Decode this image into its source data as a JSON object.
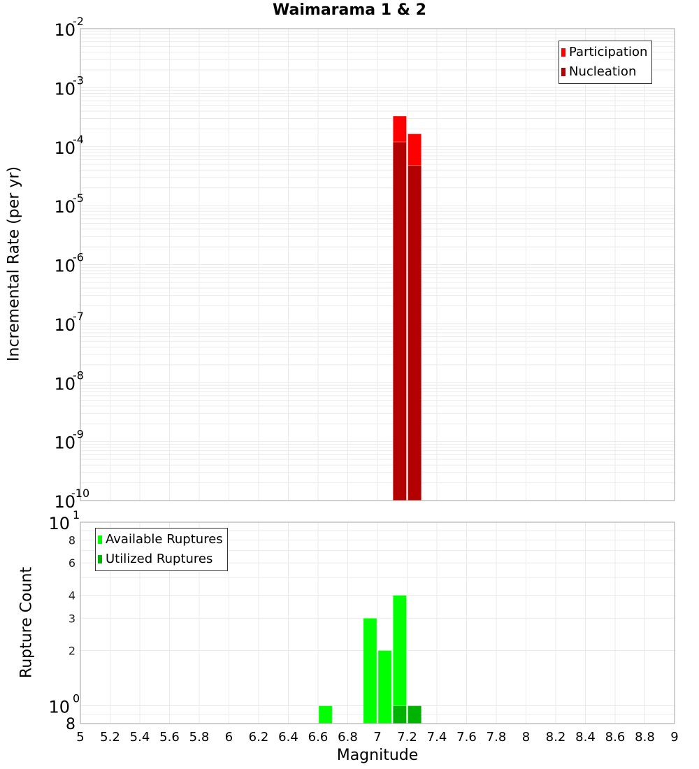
{
  "title": "Waimarama 1 & 2",
  "colors": {
    "participation": "#ff0000",
    "nucleation": "#b30000",
    "available": "#00ff00",
    "utilized": "#00b300",
    "grid": "#ebebeb",
    "axis": "#b0b0b0"
  },
  "top_plot": {
    "ylabel": "Incremental Rate (per yr)",
    "legend": [
      "Participation",
      "Nucleation"
    ]
  },
  "bottom_plot": {
    "ylabel": "Rupture Count",
    "legend": [
      "Available Ruptures",
      "Utilized Ruptures"
    ]
  },
  "xlabel": "Magnitude",
  "chart_data": [
    {
      "type": "bar",
      "title": "Waimarama 1 & 2",
      "xlabel": "Magnitude",
      "ylabel": "Incremental Rate (per yr)",
      "xlim": [
        5,
        9
      ],
      "ylim": [
        1e-10,
        0.01
      ],
      "yscale": "log",
      "grid": true,
      "legend_position": "top-right",
      "x_ticks": [
        "5",
        "5.2",
        "5.4",
        "5.6",
        "5.8",
        "6",
        "6.2",
        "6.4",
        "6.6",
        "6.8",
        "7",
        "7.2",
        "7.4",
        "7.6",
        "7.8",
        "8",
        "8.2",
        "8.4",
        "8.6",
        "8.8",
        "9"
      ],
      "y_ticks": [
        "10^-2",
        "10^-3",
        "10^-4",
        "10^-5",
        "10^-6",
        "10^-7",
        "10^-8",
        "10^-9",
        "10^-10"
      ],
      "bin_width": 0.1,
      "x": [
        7.15,
        7.25
      ],
      "series": [
        {
          "name": "Participation",
          "values": [
            0.00033,
            0.000165
          ]
        },
        {
          "name": "Nucleation",
          "values": [
            0.00012,
            4.8e-05
          ]
        }
      ]
    },
    {
      "type": "bar",
      "xlabel": "Magnitude",
      "ylabel": "Rupture Count",
      "xlim": [
        5,
        9
      ],
      "ylim": [
        0.8,
        10
      ],
      "yscale": "log",
      "grid": true,
      "legend_position": "top-left",
      "y_ticks": [
        "8",
        "10^0",
        "2",
        "3",
        "4",
        "6",
        "8",
        "10^1"
      ],
      "bin_width": 0.1,
      "x": [
        6.65,
        6.95,
        7.05,
        7.15,
        7.25
      ],
      "series": [
        {
          "name": "Available Ruptures",
          "values": [
            1,
            3,
            2,
            4,
            1
          ]
        },
        {
          "name": "Utilized Ruptures",
          "values": [
            0,
            0,
            0,
            1,
            1
          ]
        }
      ]
    }
  ]
}
